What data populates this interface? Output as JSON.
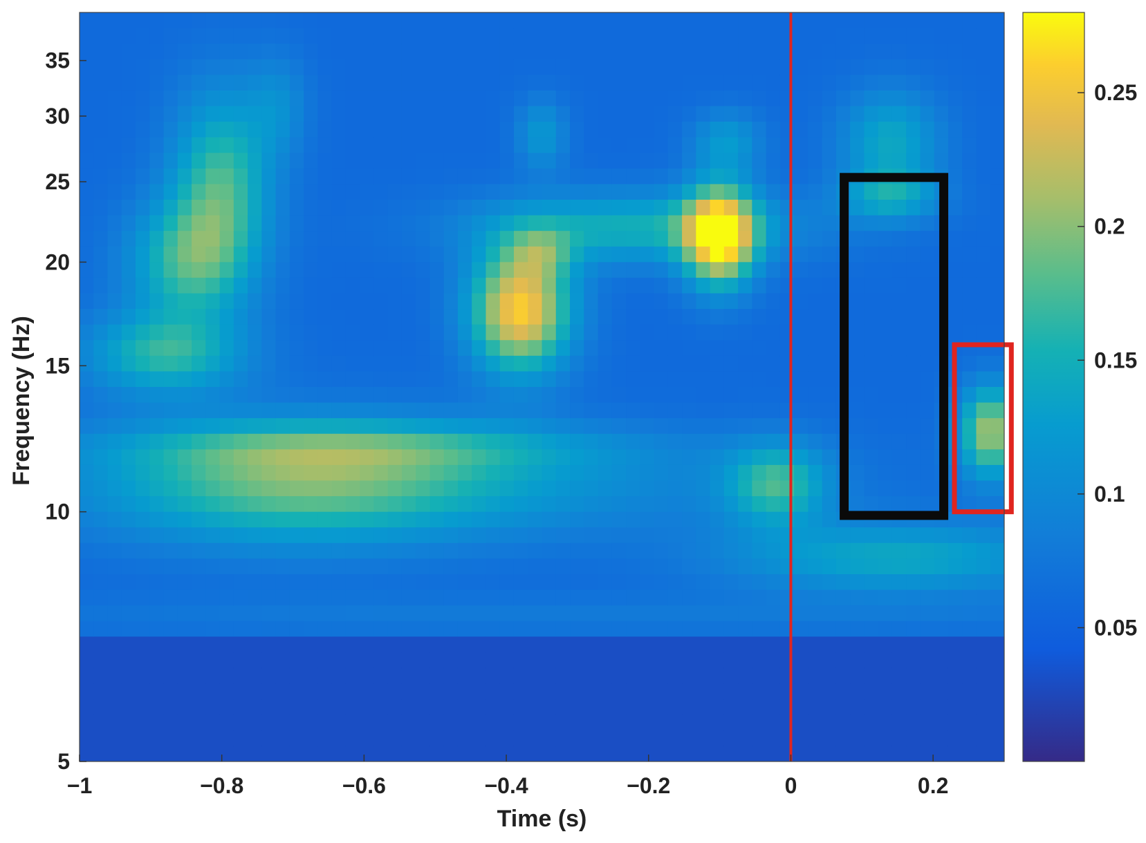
{
  "chart_data": {
    "type": "heatmap",
    "title": "",
    "xlabel": "Time (s)",
    "ylabel": "Frequency (Hz)",
    "xlim": [
      -1,
      0.3
    ],
    "ylim": [
      5,
      40
    ],
    "yscale": "log",
    "x_ticks": [
      -1,
      -0.8,
      -0.6,
      -0.4,
      -0.2,
      0,
      0.2
    ],
    "x_tick_labels": [
      "−1",
      "−0.8",
      "−0.6",
      "−0.4",
      "−0.2",
      "0",
      "0.2"
    ],
    "y_ticks": [
      5,
      10,
      15,
      20,
      25,
      30,
      35
    ],
    "y_tick_labels": [
      "5",
      "10",
      "15",
      "20",
      "25",
      "30",
      "35"
    ],
    "colorbar": {
      "range": [
        0,
        0.28
      ],
      "ticks": [
        0.05,
        0.1,
        0.15,
        0.2,
        0.25
      ],
      "tick_labels": [
        "0.05",
        "0.1",
        "0.15",
        "0.2",
        "0.25"
      ],
      "colormap": "parula"
    },
    "onset_line": {
      "x": 0,
      "color": "#e0251f"
    },
    "background_value": 0.06,
    "blobs": [
      {
        "t": -0.8,
        "f": 25,
        "dt": 0.05,
        "df": 0.18,
        "value": 0.11
      },
      {
        "t": -0.85,
        "f": 20,
        "dt": 0.06,
        "df": 0.12,
        "value": 0.1
      },
      {
        "t": -0.88,
        "f": 15.5,
        "dt": 0.08,
        "df": 0.08,
        "value": 0.1
      },
      {
        "t": -0.72,
        "f": 31,
        "dt": 0.03,
        "df": 0.1,
        "value": 0.04
      },
      {
        "t": -0.7,
        "f": 10.8,
        "dt": 0.2,
        "df": 0.12,
        "value": 0.11
      },
      {
        "t": -0.6,
        "f": 12,
        "dt": 0.25,
        "df": 0.05,
        "value": 0.06
      },
      {
        "t": -0.38,
        "f": 17.5,
        "dt": 0.05,
        "df": 0.12,
        "value": 0.2
      },
      {
        "t": -0.35,
        "f": 20.5,
        "dt": 0.03,
        "df": 0.05,
        "value": 0.05
      },
      {
        "t": -0.35,
        "f": 28.5,
        "dt": 0.025,
        "df": 0.07,
        "value": 0.06
      },
      {
        "t": -0.22,
        "f": 22,
        "dt": 0.16,
        "df": 0.07,
        "value": 0.09
      },
      {
        "t": -0.1,
        "f": 21.5,
        "dt": 0.035,
        "df": 0.1,
        "value": 0.21
      },
      {
        "t": -0.09,
        "f": 28,
        "dt": 0.035,
        "df": 0.06,
        "value": 0.06
      },
      {
        "t": -0.02,
        "f": 10.8,
        "dt": 0.05,
        "df": 0.08,
        "value": 0.1
      },
      {
        "t": -0.4,
        "f": 10.8,
        "dt": 0.3,
        "df": 0.1,
        "value": 0.04
      },
      {
        "t": 0.15,
        "f": 8.8,
        "dt": 0.17,
        "df": 0.07,
        "value": 0.08
      },
      {
        "t": 0.14,
        "f": 28,
        "dt": 0.05,
        "df": 0.1,
        "value": 0.08
      },
      {
        "t": 0.14,
        "f": 24,
        "dt": 0.05,
        "df": 0.05,
        "value": 0.07
      },
      {
        "t": 0.28,
        "f": 12.5,
        "dt": 0.03,
        "df": 0.09,
        "value": 0.15
      },
      {
        "t": -0.35,
        "f": 7.5,
        "dt": 0.7,
        "df": 0.04,
        "value": 0.02
      }
    ],
    "annotations": [
      {
        "type": "rectangle",
        "color": "#0a0a0a",
        "t0": 0.075,
        "t1": 0.215,
        "f0": 9.9,
        "f1": 25.3
      },
      {
        "type": "rectangle",
        "color": "#e0251f",
        "t0": 0.23,
        "t1": 0.31,
        "f0": 10.0,
        "f1": 15.9
      }
    ],
    "grid": false
  }
}
